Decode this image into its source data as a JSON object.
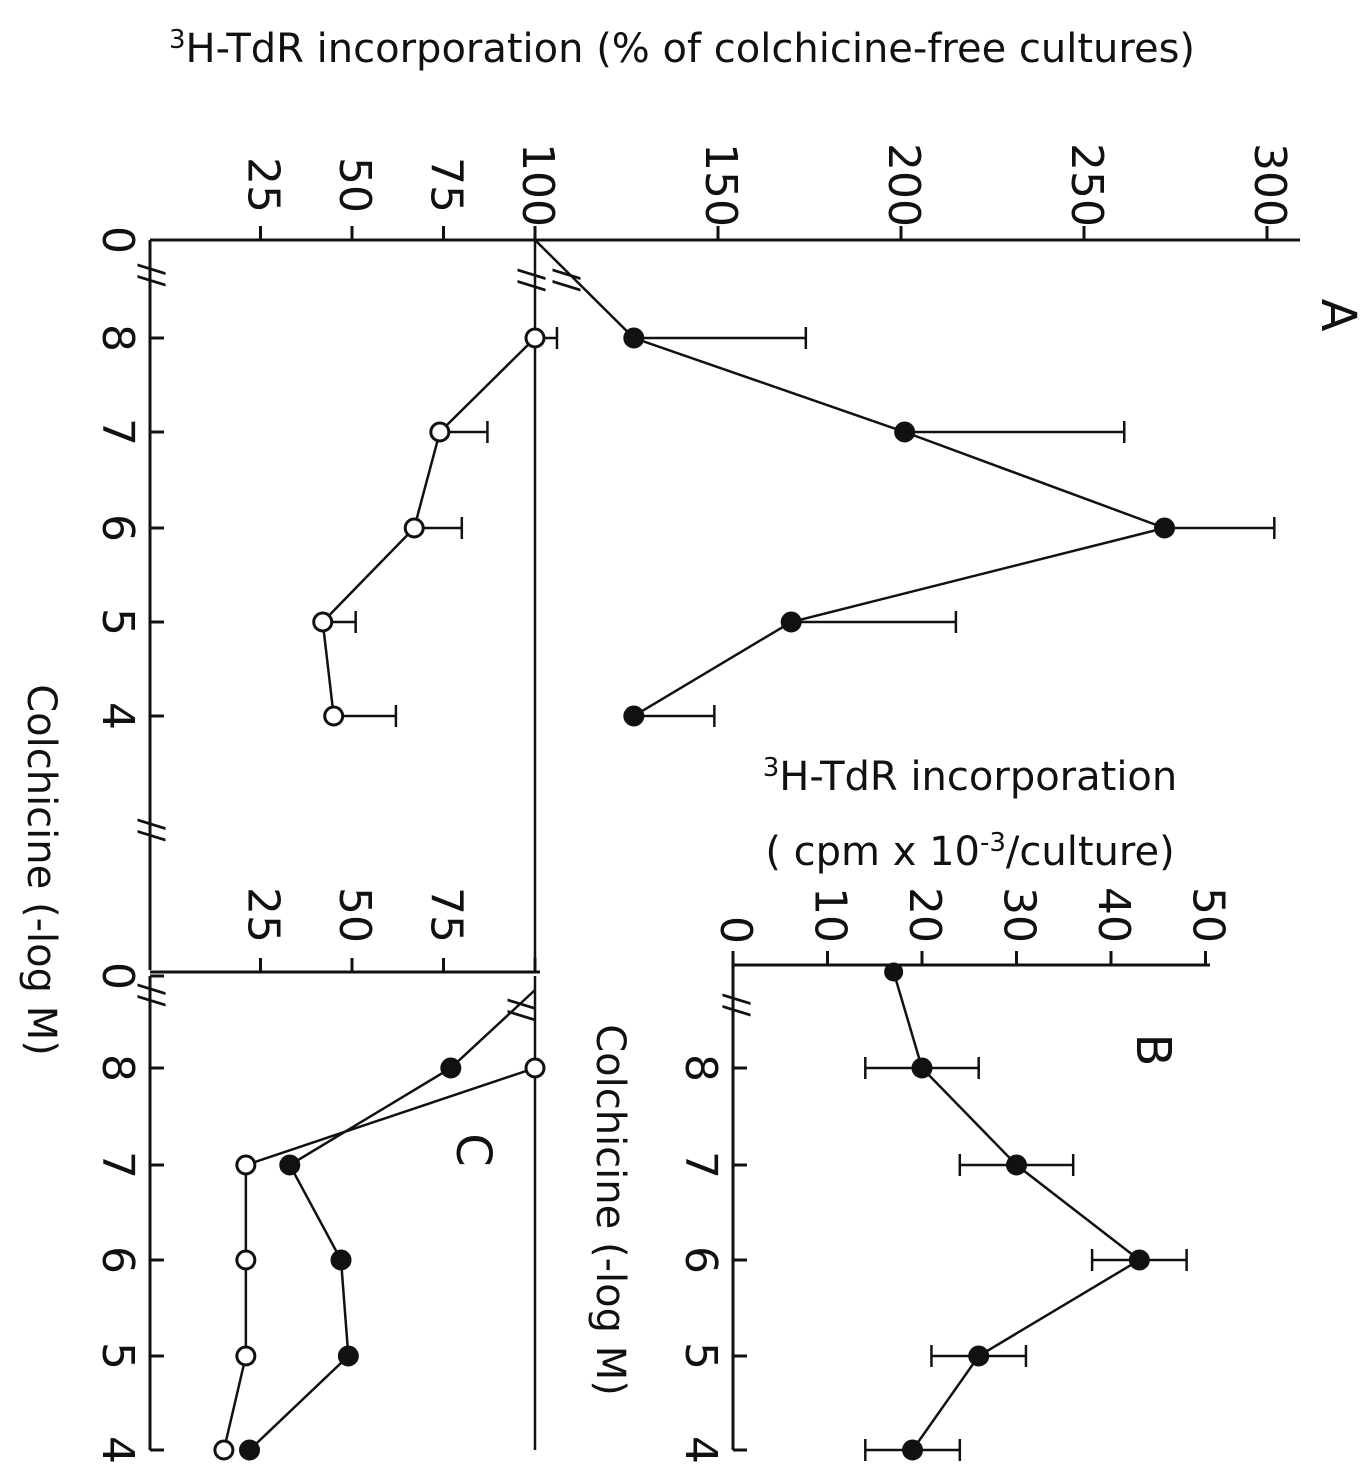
{
  "chart_data": [
    {
      "id": "A",
      "type": "line",
      "panel_label": "A",
      "x_tick_labels": [
        "0",
        "8",
        "7",
        "6",
        "5",
        "4"
      ],
      "y_tick_labels": [
        "25",
        "50",
        "75",
        "100",
        "150",
        "200",
        "250",
        "300"
      ],
      "axis_break": "//",
      "series": [
        {
          "marker": "filled-circle",
          "x": [
            8,
            7,
            6,
            5,
            4
          ],
          "y": [
            127,
            201,
            272,
            170,
            127
          ],
          "error": [
            47,
            60,
            30,
            45,
            22
          ]
        },
        {
          "marker": "open-circle",
          "x": [
            8,
            7,
            6,
            5,
            4
          ],
          "y": [
            100,
            74,
            67,
            42,
            45
          ],
          "error": [
            6,
            13,
            13,
            9,
            17
          ]
        }
      ],
      "reference_line_y": 100
    },
    {
      "id": "B",
      "type": "line",
      "panel_label": "B",
      "x_tick_labels": [
        "0",
        "8",
        "7",
        "6",
        "5",
        "4"
      ],
      "y_tick_labels": [
        "10",
        "20",
        "30",
        "40",
        "50"
      ],
      "xlim": [
        0,
        50
      ],
      "axis_break": "//",
      "series": [
        {
          "marker": "filled-circle",
          "x": [
            8,
            7,
            6,
            5,
            4
          ],
          "y": [
            20,
            30,
            43,
            26,
            19
          ],
          "error": [
            6,
            6,
            5,
            5,
            5
          ]
        }
      ],
      "control_value": 17
    },
    {
      "id": "C",
      "type": "line",
      "panel_label": "C",
      "x_tick_labels": [
        "0",
        "8",
        "7",
        "6",
        "5",
        "4"
      ],
      "y_tick_labels": [
        "25",
        "50",
        "75"
      ],
      "axis_break": "//",
      "series": [
        {
          "marker": "open-circle",
          "x": [
            8,
            7,
            6,
            5,
            4
          ],
          "y": [
            100,
            21,
            21,
            21,
            15
          ]
        },
        {
          "marker": "filled-circle",
          "x": [
            8,
            7,
            6,
            5,
            4
          ],
          "y": [
            77,
            33,
            47,
            49,
            22
          ]
        }
      ],
      "reference_line_y": 100
    }
  ],
  "labels": {
    "left_axis_title_sup": "3",
    "left_axis_title": "H-TdR incorporation  (% of colchicine-free cultures)",
    "x_axis_title": "Colchicine (-log M)",
    "b_axis_title_sup": "3",
    "b_axis_title_line1": "H-TdR incorporation",
    "b_axis_title_line2a": "( cpm x 10",
    "b_axis_title_line2_sup": "-3",
    "b_axis_title_line2b": "/culture)",
    "b_x_axis_title": "Colchicine (-log M)"
  }
}
